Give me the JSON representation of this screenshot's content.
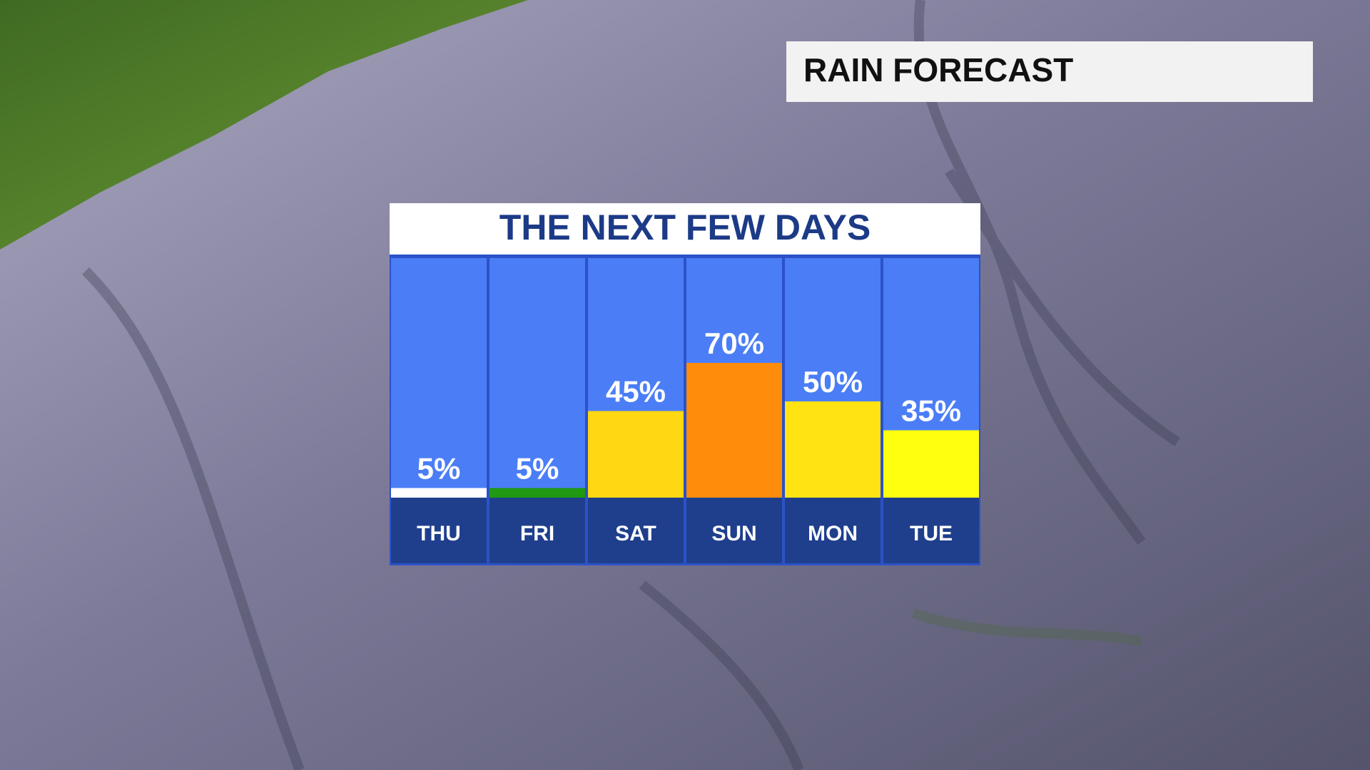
{
  "header": {
    "title": "RAIN FORECAST"
  },
  "chart_data": {
    "type": "bar",
    "title": "THE NEXT FEW DAYS",
    "categories": [
      "THU",
      "FRI",
      "SAT",
      "SUN",
      "MON",
      "TUE"
    ],
    "values": [
      5,
      5,
      45,
      70,
      50,
      35
    ],
    "value_labels": [
      "5%",
      "5%",
      "45%",
      "70%",
      "50%",
      "35%"
    ],
    "colors": [
      "#ffffff",
      "#1f9a12",
      "#ffd712",
      "#ff8c0a",
      "#ffe312",
      "#ffff10"
    ]
  }
}
